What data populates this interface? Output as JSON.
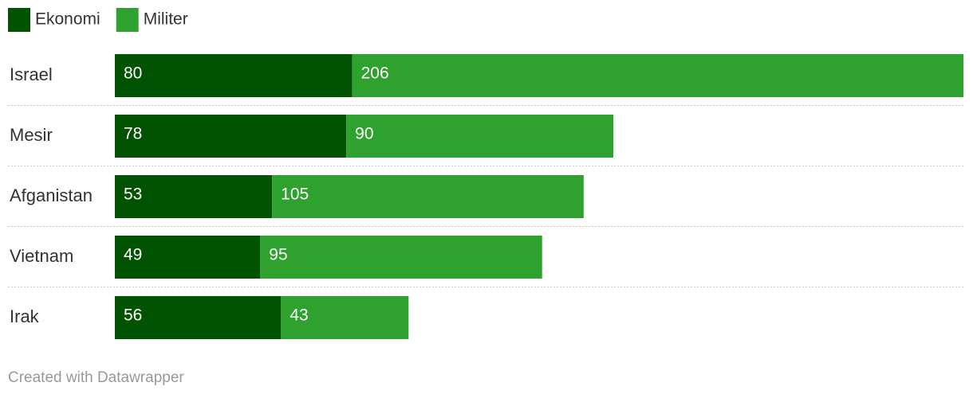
{
  "chart_data": {
    "type": "stacked-bar",
    "categories": [
      "Israel",
      "Mesir",
      "Afganistan",
      "Vietnam",
      "Irak"
    ],
    "series": [
      {
        "name": "Ekonomi",
        "color": "#015201",
        "values": [
          80,
          78,
          53,
          49,
          56
        ]
      },
      {
        "name": "Militer",
        "color": "#2ea12e",
        "values": [
          206,
          90,
          105,
          95,
          43
        ]
      }
    ],
    "credit": "Created with Datawrapper"
  }
}
